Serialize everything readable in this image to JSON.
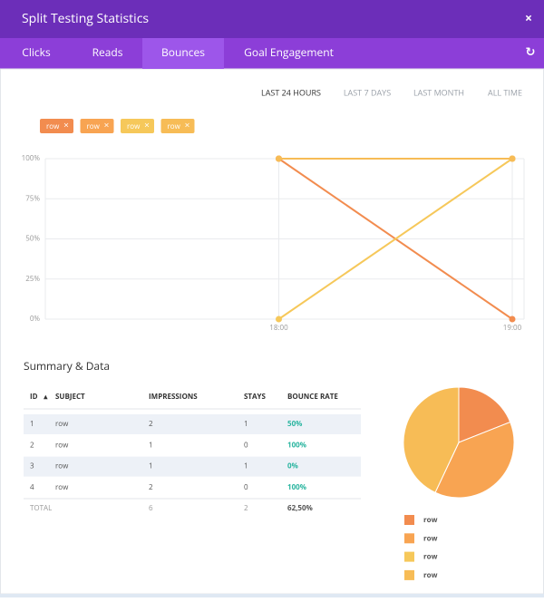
{
  "header": {
    "title": "Split Testing Statistics"
  },
  "tabs": [
    "Clicks",
    "Reads",
    "Bounces",
    "Goal Engagement"
  ],
  "active_tab": 2,
  "periods": [
    "LAST 24 HOURS",
    "LAST 7 DAYS",
    "LAST MONTH",
    "ALL TIME"
  ],
  "active_period": 0,
  "chart_data": [
    {
      "type": "line",
      "categories": [
        "18:00",
        "19:00"
      ],
      "series": [
        {
          "name": "row",
          "color": "#f28c4f",
          "values": [
            100,
            0
          ]
        },
        {
          "name": "row",
          "color": "#f8a452",
          "values": [
            100,
            100
          ]
        },
        {
          "name": "row",
          "color": "#f6c85a",
          "values": [
            0,
            100
          ]
        },
        {
          "name": "row",
          "color": "#f7bc56",
          "values": [
            100,
            100
          ]
        }
      ],
      "ylim": [
        0,
        100
      ],
      "yticks": [
        {
          "value": 0,
          "label": "0%"
        },
        {
          "value": 25,
          "label": "25%"
        },
        {
          "value": 50,
          "label": "50%"
        },
        {
          "value": 75,
          "label": "75%"
        },
        {
          "value": 100,
          "label": "100%"
        }
      ],
      "grid": true
    },
    {
      "type": "pie",
      "categories": [
        "row",
        "row",
        "row",
        "row"
      ],
      "values": [
        19,
        38,
        0,
        43
      ],
      "colors": [
        "#f28c4f",
        "#f8a452",
        "#f6c85a",
        "#f7bc56"
      ]
    }
  ],
  "summary": {
    "title": "Summary & Data",
    "columns": [
      "ID",
      "SUBJECT",
      "IMPRESSIONS",
      "STAYS",
      "BOUNCE RATE"
    ],
    "rows": [
      [
        "1",
        "row",
        "2",
        "1",
        "50%"
      ],
      [
        "2",
        "row",
        "1",
        "0",
        "100%"
      ],
      [
        "3",
        "row",
        "1",
        "1",
        "0%"
      ],
      [
        "4",
        "row",
        "2",
        "0",
        "100%"
      ]
    ],
    "total": {
      "label": "TOTAL",
      "impressions": "6",
      "stays": "2",
      "bounce_rate": "62,50%"
    }
  }
}
